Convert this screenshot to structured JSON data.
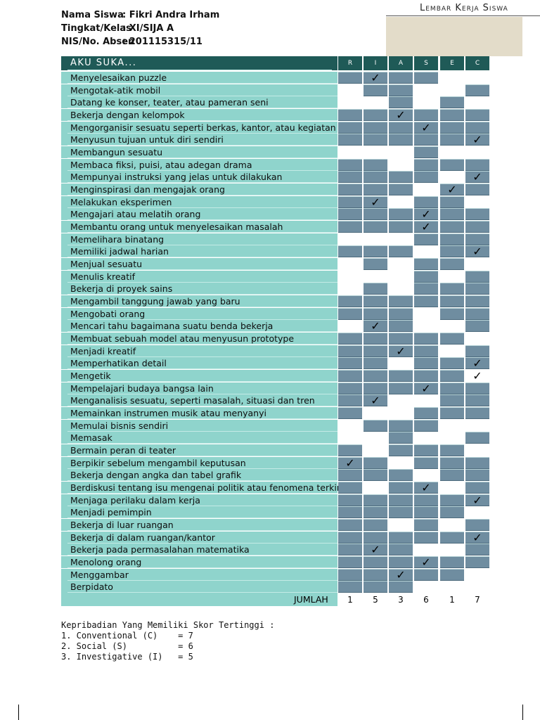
{
  "header": {
    "name_label": "Nama Siswa",
    "name_value": ": Fikri Andra Irham",
    "class_label": "Tingkat/Kelas",
    "class_value": ": XI/SIJA A",
    "nis_label": "NIS/No. Absen",
    "nis_value": ": 201115315/11",
    "sheet_title": "Lembar Kerja Siswa"
  },
  "table": {
    "title": "AKU SUKA...",
    "columns": [
      "R",
      "I",
      "A",
      "S",
      "E",
      "C"
    ],
    "rows": [
      {
        "label": "Menyelesaikan puzzle",
        "checks": [
          0,
          1,
          0,
          0,
          0,
          0
        ]
      },
      {
        "label": "Mengotak-atik mobil",
        "checks": [
          0,
          0,
          0,
          0,
          0,
          0
        ]
      },
      {
        "label": "Datang ke konser, teater, atau pameran seni",
        "checks": [
          0,
          0,
          0,
          0,
          0,
          0
        ]
      },
      {
        "label": "Bekerja dengan kelompok",
        "checks": [
          0,
          0,
          1,
          0,
          0,
          0
        ]
      },
      {
        "label": "Mengorganisir sesuatu seperti berkas, kantor, atau kegiatan",
        "checks": [
          0,
          0,
          0,
          1,
          0,
          0
        ]
      },
      {
        "label": "Menyusun tujuan untuk diri sendiri",
        "checks": [
          0,
          0,
          0,
          0,
          0,
          1
        ]
      },
      {
        "label": "Membangun sesuatu",
        "checks": [
          0,
          0,
          0,
          0,
          0,
          0
        ]
      },
      {
        "label": "Membaca fiksi, puisi, atau adegan drama",
        "checks": [
          0,
          0,
          0,
          0,
          0,
          0
        ]
      },
      {
        "label": "Mempunyai instruksi yang jelas untuk dilakukan",
        "checks": [
          0,
          0,
          0,
          0,
          0,
          1
        ]
      },
      {
        "label": "Menginspirasi dan mengajak orang",
        "checks": [
          0,
          0,
          0,
          0,
          1,
          0
        ]
      },
      {
        "label": "Melakukan eksperimen",
        "checks": [
          0,
          1,
          0,
          0,
          0,
          0
        ]
      },
      {
        "label": "Mengajari atau melatih orang",
        "checks": [
          0,
          0,
          0,
          1,
          0,
          0
        ]
      },
      {
        "label": "Membantu orang untuk menyelesaikan masalah",
        "checks": [
          0,
          0,
          0,
          1,
          0,
          0
        ]
      },
      {
        "label": "Memelihara binatang",
        "checks": [
          0,
          0,
          0,
          0,
          0,
          0
        ]
      },
      {
        "label": "Memiliki jadwal harian",
        "checks": [
          0,
          0,
          0,
          0,
          0,
          1
        ]
      },
      {
        "label": "Menjual sesuatu",
        "checks": [
          0,
          0,
          0,
          0,
          0,
          0
        ]
      },
      {
        "label": "Menulis kreatif",
        "checks": [
          0,
          0,
          0,
          0,
          0,
          0
        ]
      },
      {
        "label": "Bekerja di proyek sains",
        "checks": [
          0,
          0,
          0,
          0,
          0,
          0
        ]
      },
      {
        "label": "Mengambil tanggung jawab yang baru",
        "checks": [
          0,
          0,
          0,
          0,
          0,
          0
        ]
      },
      {
        "label": "Mengobati orang",
        "checks": [
          0,
          0,
          0,
          0,
          0,
          0
        ]
      },
      {
        "label": "Mencari tahu bagaimana suatu benda bekerja",
        "checks": [
          0,
          1,
          0,
          0,
          0,
          0
        ]
      },
      {
        "label": "Membuat sebuah model atau menyusun prototype",
        "checks": [
          0,
          0,
          0,
          0,
          0,
          0
        ]
      },
      {
        "label": "Menjadi kreatif",
        "checks": [
          0,
          0,
          1,
          0,
          0,
          0
        ]
      },
      {
        "label": "Memperhatikan detail",
        "checks": [
          0,
          0,
          0,
          0,
          0,
          1
        ]
      },
      {
        "label": "Mengetik",
        "checks": [
          0,
          0,
          0,
          0,
          0,
          1
        ]
      },
      {
        "label": "Mempelajari budaya bangsa lain",
        "checks": [
          0,
          0,
          0,
          1,
          0,
          0
        ]
      },
      {
        "label": "Menganalisis sesuatu, seperti masalah, situasi dan tren",
        "checks": [
          0,
          1,
          0,
          0,
          0,
          0
        ]
      },
      {
        "label": "Memainkan instrumen musik atau menyanyi",
        "checks": [
          0,
          0,
          0,
          0,
          0,
          0
        ]
      },
      {
        "label": "Memulai bisnis sendiri",
        "checks": [
          0,
          0,
          0,
          0,
          0,
          0
        ]
      },
      {
        "label": "Memasak",
        "checks": [
          0,
          0,
          0,
          0,
          0,
          0
        ]
      },
      {
        "label": "Bermain peran di teater",
        "checks": [
          0,
          0,
          0,
          0,
          0,
          0
        ]
      },
      {
        "label": "Berpikir sebelum mengambil keputusan",
        "checks": [
          1,
          0,
          0,
          0,
          0,
          0
        ]
      },
      {
        "label": "Bekerja dengan angka dan tabel grafik",
        "checks": [
          0,
          0,
          0,
          0,
          0,
          0
        ]
      },
      {
        "label": "Berdiskusi tentang isu mengenai politik atau fenomena terkini",
        "checks": [
          0,
          0,
          0,
          1,
          0,
          0
        ]
      },
      {
        "label": "Menjaga perilaku dalam kerja",
        "checks": [
          0,
          0,
          0,
          0,
          0,
          1
        ]
      },
      {
        "label": "Menjadi pemimpin",
        "checks": [
          0,
          0,
          0,
          0,
          0,
          0
        ]
      },
      {
        "label": "Bekerja di luar ruangan",
        "checks": [
          0,
          0,
          0,
          0,
          0,
          0
        ]
      },
      {
        "label": "Bekerja di dalam ruangan/kantor",
        "checks": [
          0,
          0,
          0,
          0,
          0,
          1
        ]
      },
      {
        "label": "Bekerja pada permasalahan matematika",
        "checks": [
          0,
          1,
          0,
          0,
          0,
          0
        ]
      },
      {
        "label": "Menolong orang",
        "checks": [
          0,
          0,
          0,
          1,
          0,
          0
        ]
      },
      {
        "label": "Menggambar",
        "checks": [
          0,
          0,
          1,
          0,
          0,
          0
        ]
      },
      {
        "label": "Berpidato",
        "checks": [
          0,
          0,
          0,
          0,
          0,
          0
        ]
      }
    ],
    "empty_cells": [
      [
        1,
        0
      ],
      [
        2,
        0
      ],
      [
        6,
        0
      ],
      [
        13,
        0
      ],
      [
        15,
        0
      ],
      [
        16,
        0
      ],
      [
        17,
        0
      ],
      [
        20,
        0
      ],
      [
        28,
        0
      ],
      [
        29,
        0
      ],
      [
        2,
        1
      ],
      [
        6,
        1
      ],
      [
        13,
        1
      ],
      [
        16,
        1
      ],
      [
        27,
        1
      ],
      [
        29,
        1
      ],
      [
        30,
        1
      ],
      [
        33,
        1
      ],
      [
        6,
        2
      ],
      [
        7,
        2
      ],
      [
        10,
        2
      ],
      [
        13,
        2
      ],
      [
        15,
        2
      ],
      [
        16,
        2
      ],
      [
        17,
        2
      ],
      [
        23,
        2
      ],
      [
        26,
        2
      ],
      [
        27,
        2
      ],
      [
        31,
        2
      ],
      [
        36,
        2
      ],
      [
        1,
        3
      ],
      [
        2,
        3
      ],
      [
        9,
        3
      ],
      [
        14,
        3
      ],
      [
        19,
        3
      ],
      [
        20,
        3
      ],
      [
        26,
        3
      ],
      [
        29,
        3
      ],
      [
        32,
        3
      ],
      [
        38,
        3
      ],
      [
        41,
        3
      ],
      [
        0,
        4
      ],
      [
        1,
        4
      ],
      [
        6,
        4
      ],
      [
        8,
        4
      ],
      [
        16,
        4
      ],
      [
        20,
        4
      ],
      [
        22,
        4
      ],
      [
        28,
        4
      ],
      [
        29,
        4
      ],
      [
        33,
        4
      ],
      [
        36,
        4
      ],
      [
        38,
        4
      ],
      [
        41,
        4
      ],
      [
        0,
        5
      ],
      [
        2,
        5
      ],
      [
        6,
        5
      ],
      [
        10,
        5
      ],
      [
        15,
        5
      ],
      [
        21,
        5
      ],
      [
        24,
        5
      ],
      [
        28,
        5
      ],
      [
        30,
        5
      ],
      [
        35,
        5
      ],
      [
        40,
        5
      ],
      [
        41,
        5
      ]
    ],
    "jumlah_label": "JUMLAH",
    "jumlah_values": [
      "1",
      "5",
      "3",
      "6",
      "1",
      "7"
    ]
  },
  "summary": {
    "heading": "Kepribadian Yang Memiliki Skor Tertinggi :",
    "lines": [
      "1. Conventional (C)    = 7",
      "2. Social (S)          = 6",
      "3. Investigative (I)   = 5"
    ]
  },
  "icons": {
    "check": "check-mark-icon"
  },
  "colors": {
    "banner": "#1f5a57",
    "row": "#8fd4cc",
    "cell": "#6f8da0",
    "tag_box": "#e3dcc9"
  }
}
